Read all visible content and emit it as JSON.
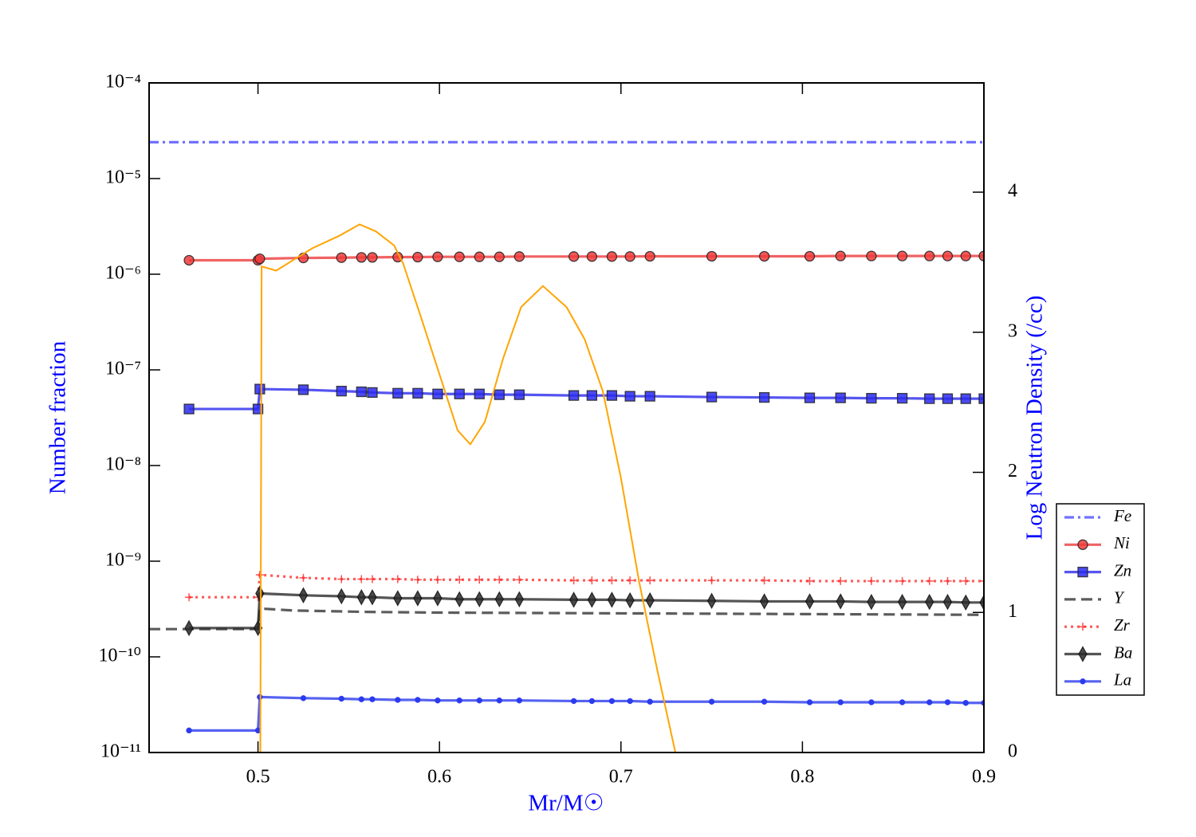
{
  "chart_data": {
    "type": "line",
    "xlabel": "Mr/M☉",
    "ylabel": "Number fraction",
    "y2label": "Log Neutron Density (/cc)",
    "xlim": [
      0.44,
      0.9
    ],
    "xticks": [
      0.5,
      0.6,
      0.7,
      0.8,
      0.9
    ],
    "ylim": [
      1e-11,
      0.0001
    ],
    "ylog": true,
    "yticks": [
      {
        "value": 1e-11,
        "label": "10⁻¹¹"
      },
      {
        "value": 1e-10,
        "label": "10⁻¹⁰"
      },
      {
        "value": 1e-09,
        "label": "10⁻⁹"
      },
      {
        "value": 1e-08,
        "label": "10⁻⁸"
      },
      {
        "value": 1e-07,
        "label": "10⁻⁷"
      },
      {
        "value": 1e-06,
        "label": "10⁻⁶"
      },
      {
        "value": 1e-05,
        "label": "10⁻⁵"
      },
      {
        "value": 0.0001,
        "label": "10⁻⁴"
      }
    ],
    "y2lim": [
      0,
      4.78
    ],
    "y2ticks": [
      0,
      1,
      2,
      3,
      4
    ],
    "legend": "outside-right",
    "series": [
      {
        "name": "Fe",
        "color": "#4d4dff",
        "linestyle": "dashdot",
        "marker": "none",
        "x": [
          0.44,
          0.9
        ],
        "values": [
          2.4e-05,
          2.4e-05
        ]
      },
      {
        "name": "Ni",
        "color": "#ee3b3b",
        "linestyle": "solid",
        "marker": "circle",
        "x": [
          0.462,
          0.5,
          0.501,
          0.525,
          0.546,
          0.557,
          0.563,
          0.577,
          0.588,
          0.599,
          0.611,
          0.622,
          0.633,
          0.644,
          0.674,
          0.684,
          0.695,
          0.705,
          0.716,
          0.75,
          0.779,
          0.804,
          0.821,
          0.838,
          0.855,
          0.87,
          0.88,
          0.89,
          0.9
        ],
        "values": [
          1.4e-06,
          1.4e-06,
          1.45e-06,
          1.48e-06,
          1.49e-06,
          1.5e-06,
          1.5e-06,
          1.51e-06,
          1.51e-06,
          1.52e-06,
          1.52e-06,
          1.52e-06,
          1.52e-06,
          1.53e-06,
          1.53e-06,
          1.53e-06,
          1.53e-06,
          1.53e-06,
          1.54e-06,
          1.54e-06,
          1.54e-06,
          1.54e-06,
          1.55e-06,
          1.55e-06,
          1.55e-06,
          1.55e-06,
          1.55e-06,
          1.55e-06,
          1.55e-06
        ]
      },
      {
        "name": "Zn",
        "color": "#2b2bee",
        "linestyle": "solid",
        "marker": "square",
        "x": [
          0.462,
          0.5,
          0.501,
          0.525,
          0.546,
          0.557,
          0.563,
          0.577,
          0.588,
          0.599,
          0.611,
          0.622,
          0.633,
          0.644,
          0.674,
          0.684,
          0.695,
          0.705,
          0.716,
          0.75,
          0.779,
          0.804,
          0.821,
          0.838,
          0.855,
          0.87,
          0.88,
          0.89,
          0.9
        ],
        "values": [
          3.9e-08,
          3.9e-08,
          6.3e-08,
          6.2e-08,
          6e-08,
          5.9e-08,
          5.8e-08,
          5.7e-08,
          5.7e-08,
          5.6e-08,
          5.6e-08,
          5.6e-08,
          5.5e-08,
          5.5e-08,
          5.4e-08,
          5.4e-08,
          5.4e-08,
          5.3e-08,
          5.3e-08,
          5.2e-08,
          5.15e-08,
          5.1e-08,
          5.1e-08,
          5.05e-08,
          5.05e-08,
          5e-08,
          5e-08,
          5e-08,
          5e-08
        ]
      },
      {
        "name": "Y",
        "color": "#333333",
        "linestyle": "dashed",
        "marker": "none",
        "x": [
          0.44,
          0.5,
          0.501,
          0.52,
          0.56,
          0.6,
          0.7,
          0.8,
          0.9
        ],
        "values": [
          1.95e-10,
          1.95e-10,
          3.2e-10,
          3.05e-10,
          2.95e-10,
          2.9e-10,
          2.85e-10,
          2.8e-10,
          2.75e-10
        ]
      },
      {
        "name": "Zr",
        "color": "#ff3030",
        "linestyle": "dotted",
        "marker": "plus",
        "x": [
          0.462,
          0.5,
          0.501,
          0.525,
          0.546,
          0.557,
          0.563,
          0.577,
          0.588,
          0.599,
          0.611,
          0.622,
          0.633,
          0.644,
          0.674,
          0.684,
          0.695,
          0.705,
          0.716,
          0.75,
          0.779,
          0.804,
          0.821,
          0.838,
          0.855,
          0.87,
          0.88,
          0.89,
          0.9
        ],
        "values": [
          4.2e-10,
          4.2e-10,
          7.2e-10,
          6.7e-10,
          6.5e-10,
          6.5e-10,
          6.5e-10,
          6.5e-10,
          6.4e-10,
          6.4e-10,
          6.4e-10,
          6.4e-10,
          6.4e-10,
          6.4e-10,
          6.3e-10,
          6.3e-10,
          6.3e-10,
          6.3e-10,
          6.3e-10,
          6.3e-10,
          6.3e-10,
          6.2e-10,
          6.2e-10,
          6.2e-10,
          6.2e-10,
          6.2e-10,
          6.2e-10,
          6.2e-10,
          6.2e-10
        ]
      },
      {
        "name": "Ba",
        "color": "#2a2a2a",
        "linestyle": "solid",
        "marker": "diamond",
        "x": [
          0.462,
          0.5,
          0.501,
          0.525,
          0.546,
          0.557,
          0.563,
          0.577,
          0.588,
          0.599,
          0.611,
          0.622,
          0.633,
          0.644,
          0.674,
          0.684,
          0.695,
          0.705,
          0.716,
          0.75,
          0.779,
          0.804,
          0.821,
          0.838,
          0.855,
          0.87,
          0.88,
          0.89,
          0.9
        ],
        "values": [
          2e-10,
          2e-10,
          4.6e-10,
          4.4e-10,
          4.3e-10,
          4.2e-10,
          4.2e-10,
          4.1e-10,
          4.1e-10,
          4.1e-10,
          4e-10,
          4e-10,
          4e-10,
          4e-10,
          3.95e-10,
          3.95e-10,
          3.95e-10,
          3.9e-10,
          3.9e-10,
          3.85e-10,
          3.8e-10,
          3.8e-10,
          3.8e-10,
          3.75e-10,
          3.75e-10,
          3.75e-10,
          3.75e-10,
          3.7e-10,
          3.7e-10
        ]
      },
      {
        "name": "La",
        "color": "#2b3bee",
        "linestyle": "solid",
        "marker": "dot",
        "x": [
          0.462,
          0.5,
          0.501,
          0.525,
          0.546,
          0.557,
          0.563,
          0.577,
          0.588,
          0.599,
          0.611,
          0.622,
          0.633,
          0.644,
          0.674,
          0.684,
          0.695,
          0.705,
          0.716,
          0.75,
          0.779,
          0.804,
          0.821,
          0.838,
          0.855,
          0.87,
          0.88,
          0.89,
          0.9
        ],
        "values": [
          1.7e-11,
          1.7e-11,
          3.8e-11,
          3.7e-11,
          3.65e-11,
          3.6e-11,
          3.6e-11,
          3.55e-11,
          3.55e-11,
          3.5e-11,
          3.5e-11,
          3.5e-11,
          3.5e-11,
          3.5e-11,
          3.45e-11,
          3.45e-11,
          3.45e-11,
          3.45e-11,
          3.4e-11,
          3.4e-11,
          3.4e-11,
          3.35e-11,
          3.35e-11,
          3.35e-11,
          3.35e-11,
          3.35e-11,
          3.35e-11,
          3.3e-11,
          3.3e-11
        ]
      },
      {
        "color": "#ffa500",
        "linestyle": "solid",
        "marker": "none",
        "axis": "y2",
        "x": [
          0.5013,
          0.502,
          0.51,
          0.52,
          0.53,
          0.545,
          0.556,
          0.565,
          0.575,
          0.58,
          0.59,
          0.6,
          0.61,
          0.617,
          0.625,
          0.635,
          0.645,
          0.657,
          0.67,
          0.68,
          0.69,
          0.7,
          0.71,
          0.72,
          0.73
        ],
        "values": [
          0,
          3.47,
          3.44,
          3.52,
          3.6,
          3.69,
          3.77,
          3.72,
          3.62,
          3.49,
          3.1,
          2.7,
          2.3,
          2.2,
          2.36,
          2.81,
          3.18,
          3.33,
          3.18,
          2.95,
          2.58,
          1.96,
          1.22,
          0.59,
          0
        ]
      }
    ]
  }
}
